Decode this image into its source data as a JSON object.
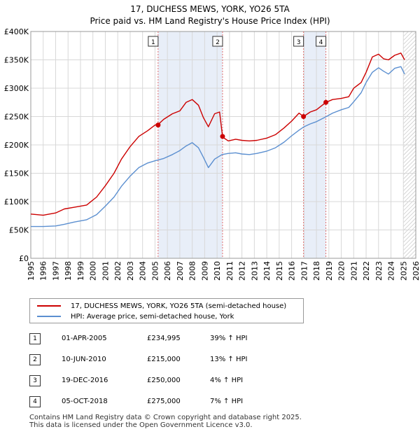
{
  "chart_data": {
    "type": "line",
    "title": "17, DUCHESS MEWS, YORK, YO26 5TA",
    "subtitle": "Price paid vs. HM Land Registry's House Price Index (HPI)",
    "xlabel": "",
    "ylabel": "",
    "xlim": [
      1995,
      2026
    ],
    "ylim": [
      0,
      400000
    ],
    "y_ticks": [
      0,
      50000,
      100000,
      150000,
      200000,
      250000,
      300000,
      350000,
      400000
    ],
    "y_tick_labels": [
      "£0",
      "£50K",
      "£100K",
      "£150K",
      "£200K",
      "£250K",
      "£300K",
      "£350K",
      "£400K"
    ],
    "x_ticks": [
      1995,
      1996,
      1997,
      1998,
      1999,
      2000,
      2001,
      2002,
      2003,
      2004,
      2005,
      2006,
      2007,
      2008,
      2009,
      2010,
      2011,
      2012,
      2013,
      2014,
      2015,
      2016,
      2017,
      2018,
      2019,
      2020,
      2021,
      2022,
      2023,
      2024,
      2025,
      2026
    ],
    "x_tick_labels": [
      "1995",
      "1996",
      "1997",
      "1998",
      "1999",
      "2000",
      "2001",
      "2002",
      "2003",
      "2004",
      "2005",
      "2006",
      "2007",
      "2008",
      "2009",
      "2010",
      "2011",
      "2012",
      "2013",
      "2014",
      "2015",
      "2016",
      "2017",
      "2018",
      "2019",
      "2020",
      "2021",
      "2022",
      "2023",
      "2024",
      "2025",
      "2026"
    ],
    "series": [
      {
        "name": "17, DUCHESS MEWS, YORK, YO26 5TA (semi-detached house)",
        "color": "#cc0000",
        "x": [
          1995.0,
          1996.0,
          1997.0,
          1997.7,
          1998.5,
          1999.5,
          2000.3,
          2001.0,
          2001.7,
          2002.3,
          2003.0,
          2003.7,
          2004.4,
          2005.0,
          2005.25,
          2005.7,
          2006.4,
          2007.0,
          2007.5,
          2008.0,
          2008.5,
          2008.9,
          2009.3,
          2009.8,
          2010.2,
          2010.44,
          2010.5,
          2010.9,
          2011.5,
          2012.0,
          2012.6,
          2013.2,
          2014.0,
          2014.7,
          2015.4,
          2016.0,
          2016.6,
          2016.96,
          2017.5,
          2018.0,
          2018.76,
          2019.3,
          2020.0,
          2020.6,
          2021.0,
          2021.6,
          2022.0,
          2022.5,
          2023.0,
          2023.4,
          2023.8,
          2024.3,
          2024.8,
          2025.1
        ],
        "y": [
          78000,
          76000,
          80000,
          87000,
          90000,
          94000,
          108000,
          128000,
          150000,
          175000,
          197000,
          215000,
          225000,
          234995,
          236000,
          245000,
          255000,
          260000,
          275000,
          280000,
          270000,
          248000,
          232000,
          255000,
          258000,
          215000,
          213000,
          207000,
          210000,
          208000,
          207000,
          208000,
          212000,
          218000,
          230000,
          242000,
          256000,
          250000,
          258000,
          262000,
          275000,
          280000,
          282000,
          285000,
          300000,
          310000,
          328000,
          355000,
          360000,
          352000,
          350000,
          358000,
          362000,
          350000
        ]
      },
      {
        "name": "HPI: Average price, semi-detached house, York",
        "color": "#5b8fd0",
        "x": [
          1995.0,
          1996.0,
          1997.0,
          1997.7,
          1998.5,
          1999.5,
          2000.3,
          2001.0,
          2001.7,
          2002.3,
          2003.0,
          2003.7,
          2004.4,
          2005.0,
          2005.7,
          2006.4,
          2007.0,
          2007.5,
          2008.0,
          2008.5,
          2008.9,
          2009.3,
          2009.8,
          2010.4,
          2010.9,
          2011.5,
          2012.0,
          2012.6,
          2013.2,
          2014.0,
          2014.7,
          2015.4,
          2016.0,
          2016.6,
          2017.0,
          2017.5,
          2018.0,
          2018.8,
          2019.3,
          2020.0,
          2020.6,
          2021.0,
          2021.6,
          2022.0,
          2022.5,
          2023.0,
          2023.4,
          2023.8,
          2024.3,
          2024.8,
          2025.1
        ],
        "y": [
          56000,
          56000,
          57000,
          60000,
          64000,
          68000,
          77000,
          92000,
          108000,
          127000,
          145000,
          160000,
          168000,
          172000,
          176000,
          183000,
          190000,
          198000,
          204000,
          195000,
          178000,
          160000,
          175000,
          183000,
          185000,
          186000,
          184000,
          183000,
          185000,
          189000,
          195000,
          205000,
          216000,
          226000,
          232000,
          237000,
          241000,
          250000,
          256000,
          262000,
          266000,
          276000,
          292000,
          310000,
          328000,
          336000,
          330000,
          325000,
          335000,
          338000,
          325000
        ]
      }
    ],
    "sale_markers": [
      {
        "label": "1",
        "x": 2005.25,
        "y": 234995
      },
      {
        "label": "2",
        "x": 2010.44,
        "y": 215000
      },
      {
        "label": "3",
        "x": 2016.96,
        "y": 250000
      },
      {
        "label": "4",
        "x": 2018.76,
        "y": 275000
      }
    ],
    "shaded_ranges": [
      [
        2005.25,
        2010.44
      ],
      [
        2016.96,
        2018.76
      ]
    ],
    "hatched_from": 2025.0
  },
  "legend": {
    "property_label": "17, DUCHESS MEWS, YORK, YO26 5TA (semi-detached house)",
    "hpi_label": "HPI: Average price, semi-detached house, York"
  },
  "sales": [
    {
      "num": "1",
      "date": "01-APR-2005",
      "price": "£234,995",
      "hpi": "39% ↑ HPI"
    },
    {
      "num": "2",
      "date": "10-JUN-2010",
      "price": "£215,000",
      "hpi": "13% ↑ HPI"
    },
    {
      "num": "3",
      "date": "19-DEC-2016",
      "price": "£250,000",
      "hpi": "4% ↑ HPI"
    },
    {
      "num": "4",
      "date": "05-OCT-2018",
      "price": "£275,000",
      "hpi": "7% ↑ HPI"
    }
  ],
  "footer": {
    "line1": "Contains HM Land Registry data © Crown copyright and database right 2025.",
    "line2": "This data is licensed under the Open Government Licence v3.0."
  },
  "colors": {
    "property": "#cc0000",
    "hpi": "#5b8fd0",
    "shade": "#e8eef8"
  }
}
